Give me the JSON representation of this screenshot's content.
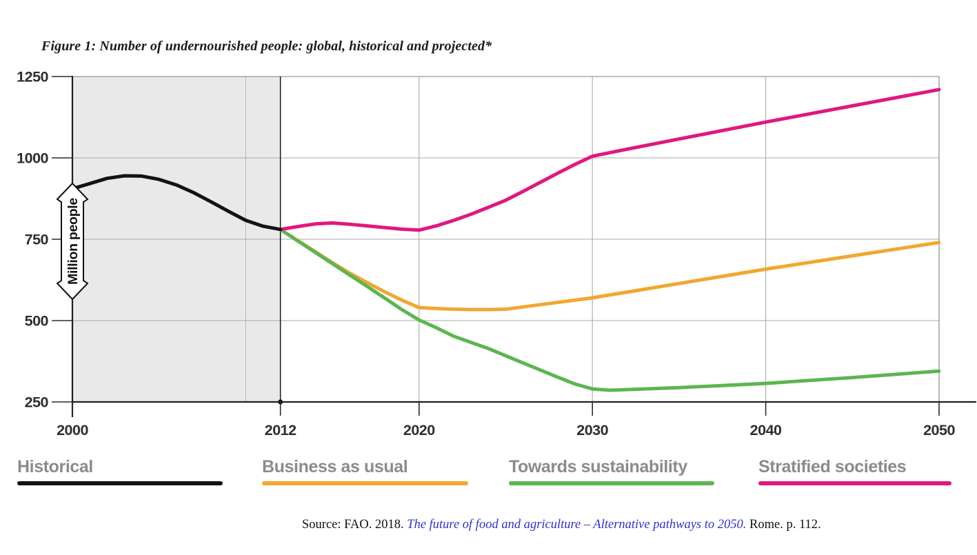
{
  "figure": {
    "title": "Figure 1: Number of undernourished people: global, historical and projected*"
  },
  "source": {
    "prefix": "Source: FAO. 2018. ",
    "link_text": "The future of food and agriculture – Alternative pathways to 2050.",
    "suffix": " Rome. p. 112.",
    "link_color": "#3030cf"
  },
  "chart_data": {
    "type": "line",
    "title": "Number of undernourished people: global, historical and projected",
    "xlabel": "",
    "ylabel": "Million people",
    "x_range": [
      2000,
      2050
    ],
    "y_range": [
      250,
      1250
    ],
    "x_ticks": [
      2000,
      2012,
      2020,
      2030,
      2040,
      2050
    ],
    "y_ticks": [
      250,
      500,
      750,
      1000,
      1250
    ],
    "historical_region": {
      "from": 2000,
      "to": 2012,
      "shading_color": "#e9e9e9",
      "inner_gridline_year": 2010,
      "inner_gridline_color": "#bdbdbd",
      "boundary_line_color": "#1a1a1a",
      "boundary_dot_at": [
        2012,
        250
      ]
    },
    "layout": {
      "grid": true,
      "grid_color": "#a8a8a8",
      "border_color": "#7d7d7d",
      "axis_color": "#1f1f1f",
      "tick_label_color": "#2e2e2e",
      "ylabel_banner": true,
      "legend_position": "bottom"
    },
    "series": [
      {
        "name": "Historical",
        "color": "#131313",
        "points": [
          [
            2000,
            905
          ],
          [
            2001,
            921
          ],
          [
            2002,
            937
          ],
          [
            2003,
            945
          ],
          [
            2004,
            944
          ],
          [
            2005,
            934
          ],
          [
            2006,
            917
          ],
          [
            2007,
            893
          ],
          [
            2008,
            865
          ],
          [
            2009,
            836
          ],
          [
            2010,
            808
          ],
          [
            2011,
            790
          ],
          [
            2012,
            780
          ]
        ]
      },
      {
        "name": "Business as usual",
        "color": "#F1A72F",
        "points": [
          [
            2012,
            780
          ],
          [
            2013,
            746
          ],
          [
            2014,
            712
          ],
          [
            2015,
            678
          ],
          [
            2016,
            646
          ],
          [
            2017,
            617
          ],
          [
            2018,
            589
          ],
          [
            2019,
            563
          ],
          [
            2020,
            540
          ],
          [
            2021,
            537
          ],
          [
            2022,
            535
          ],
          [
            2023,
            534
          ],
          [
            2024,
            534
          ],
          [
            2025,
            535
          ],
          [
            2030,
            570
          ],
          [
            2040,
            658
          ],
          [
            2050,
            740
          ]
        ]
      },
      {
        "name": "Towards sustainability",
        "color": "#5CB551",
        "points": [
          [
            2012,
            780
          ],
          [
            2013,
            745
          ],
          [
            2014,
            710
          ],
          [
            2015,
            675
          ],
          [
            2016,
            640
          ],
          [
            2017,
            605
          ],
          [
            2018,
            570
          ],
          [
            2019,
            534
          ],
          [
            2020,
            502
          ],
          [
            2021,
            478
          ],
          [
            2022,
            452
          ],
          [
            2024,
            414
          ],
          [
            2026,
            370
          ],
          [
            2028,
            326
          ],
          [
            2029,
            305
          ],
          [
            2030,
            290
          ],
          [
            2031,
            286
          ],
          [
            2033,
            290
          ],
          [
            2035,
            294
          ],
          [
            2040,
            307
          ],
          [
            2045,
            325
          ],
          [
            2050,
            345
          ]
        ]
      },
      {
        "name": "Stratified societies",
        "color": "#E0187F",
        "points": [
          [
            2012,
            780
          ],
          [
            2013,
            789
          ],
          [
            2014,
            797
          ],
          [
            2015,
            800
          ],
          [
            2016,
            796
          ],
          [
            2017,
            791
          ],
          [
            2018,
            786
          ],
          [
            2019,
            781
          ],
          [
            2020,
            778
          ],
          [
            2021,
            791
          ],
          [
            2022,
            808
          ],
          [
            2023,
            827
          ],
          [
            2024,
            848
          ],
          [
            2025,
            870
          ],
          [
            2026,
            897
          ],
          [
            2027,
            925
          ],
          [
            2028,
            953
          ],
          [
            2029,
            980
          ],
          [
            2030,
            1005
          ],
          [
            2031,
            1016
          ],
          [
            2035,
            1058
          ],
          [
            2040,
            1110
          ],
          [
            2045,
            1160
          ],
          [
            2050,
            1210
          ]
        ]
      }
    ]
  },
  "legend": {
    "items": [
      {
        "label": "Historical",
        "color": "#131313"
      },
      {
        "label": "Business as usual",
        "color": "#F1A72F"
      },
      {
        "label": "Towards sustainability",
        "color": "#5CB551"
      },
      {
        "label": "Stratified societies",
        "color": "#E0187F"
      }
    ]
  }
}
